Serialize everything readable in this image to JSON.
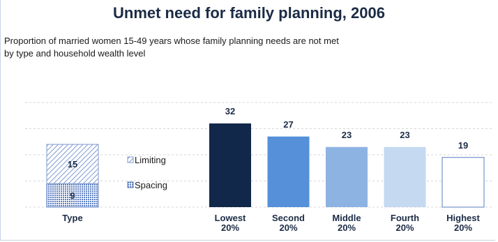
{
  "chart_data": {
    "type": "bar",
    "title": "Unmet need for family planning, 2006",
    "subtitle": "Proportion of married women 15-49 years whose family planning needs are not met by type and household wealth level",
    "subtitle_lines": [
      "Proportion of married women 15-49 years whose family planning needs are not met",
      "by type and household wealth level"
    ],
    "ylim": [
      0,
      40
    ],
    "grid": true,
    "stacked": {
      "category": "Type",
      "series": [
        {
          "name": "Spacing",
          "value": 9,
          "pattern": "dots",
          "color": "#5a7dbf"
        },
        {
          "name": "Limiting",
          "value": 15,
          "pattern": "diagonal-lines",
          "color": "#7e9ad0"
        }
      ],
      "legend_order": [
        "Limiting",
        "Spacing"
      ],
      "legend_placement": "right of Type bar"
    },
    "categories": [
      {
        "label": [
          "Lowest",
          "20%"
        ],
        "value": 32,
        "color": "#12284a"
      },
      {
        "label": [
          "Second",
          "20%"
        ],
        "value": 27,
        "color": "#5590d9"
      },
      {
        "label": [
          "Middle",
          "20%"
        ],
        "value": 23,
        "color": "#8db3e2"
      },
      {
        "label": [
          "Fourth",
          "20%"
        ],
        "value": 23,
        "color": "#c5d9f1"
      },
      {
        "label": [
          "Highest",
          "20%"
        ],
        "value": 19,
        "color": "#ffffff",
        "outline": "#5a7dbf"
      }
    ]
  }
}
